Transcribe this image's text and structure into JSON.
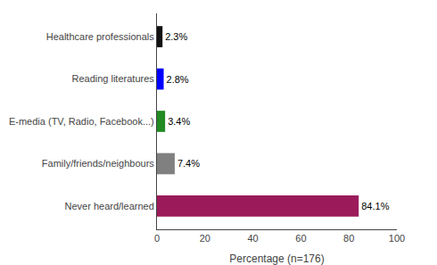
{
  "chart_data": {
    "type": "bar",
    "orientation": "horizontal",
    "categories": [
      "Never heard/learned",
      "Family/friends/neighbours",
      "E-media (TV, Radio, Facebook...)",
      "Reading literatures",
      "Healthcare professionals"
    ],
    "values": [
      84.1,
      7.4,
      3.4,
      2.8,
      2.3
    ],
    "value_labels": [
      "84.1%",
      "7.4%",
      "3.4%",
      "2.8%",
      "2.3%"
    ],
    "data_labels": true,
    "colors": [
      "#9B1B5A",
      "#808080",
      "#228B22",
      "#0000FF",
      "#111111"
    ],
    "xlabel": "Percentage (n=176)",
    "xlim": [
      0,
      100
    ],
    "xticks": [
      0,
      20,
      40,
      60,
      80,
      100
    ],
    "grid": false
  }
}
